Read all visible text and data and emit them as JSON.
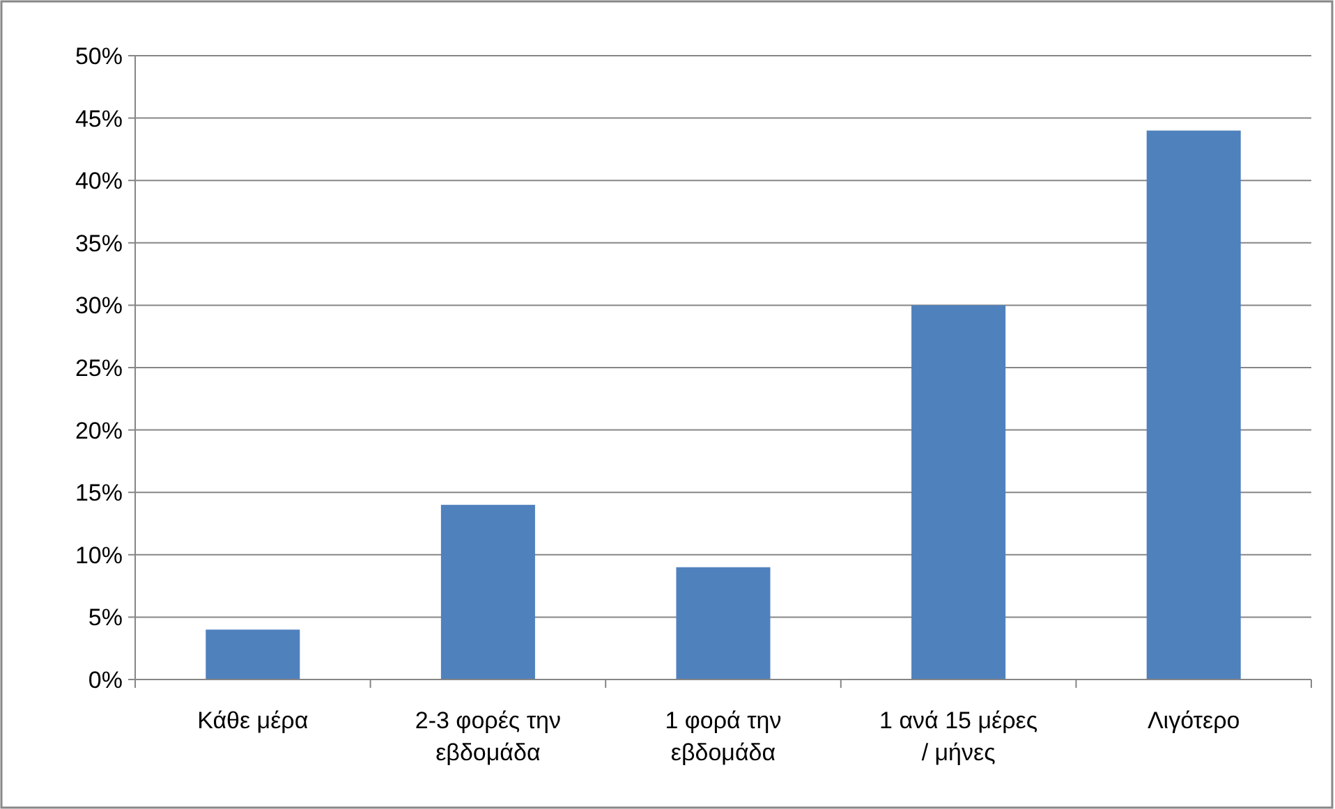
{
  "chart_data": {
    "type": "bar",
    "categories": [
      "Κάθε μέρα",
      "2-3 φορές την εβδομάδα",
      "1 φορά την εβδομάδα",
      "1 ανά 15 μέρες / μήνες",
      "Λιγότερο"
    ],
    "values": [
      4,
      14,
      9,
      30,
      44
    ],
    "color": "#4f81bd",
    "ylim": [
      0,
      50
    ],
    "yticks": [
      {
        "value": 0,
        "label": "0%"
      },
      {
        "value": 5,
        "label": "5%"
      },
      {
        "value": 10,
        "label": "10%"
      },
      {
        "value": 15,
        "label": "15%"
      },
      {
        "value": 20,
        "label": "20%"
      },
      {
        "value": 25,
        "label": "25%"
      },
      {
        "value": 30,
        "label": "30%"
      },
      {
        "value": 35,
        "label": "35%"
      },
      {
        "value": 40,
        "label": "40%"
      },
      {
        "value": 45,
        "label": "45%"
      },
      {
        "value": 50,
        "label": "50%"
      }
    ],
    "grid": "y"
  }
}
